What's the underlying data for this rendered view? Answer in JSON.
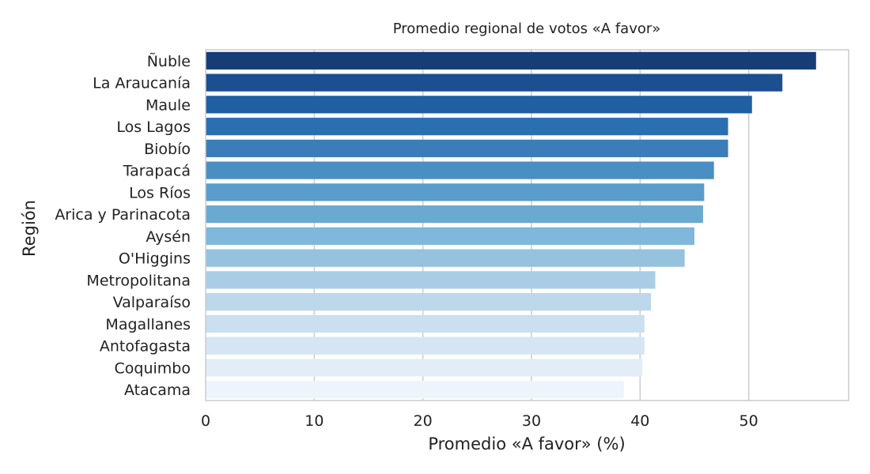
{
  "chart_data": {
    "type": "bar",
    "orientation": "horizontal",
    "title": "Promedio regional de votos «A favor»",
    "xlabel": "Promedio «A favor» (%)",
    "ylabel": "Región",
    "categories": [
      "Ñuble",
      "La Araucanía",
      "Maule",
      "Los Lagos",
      "Biobío",
      "Tarapacá",
      "Los Ríos",
      "Arica y Parinacota",
      "Aysén",
      "O'Higgins",
      "Metropolitana",
      "Valparaíso",
      "Magallanes",
      "Antofagasta",
      "Coquimbo",
      "Atacama"
    ],
    "values": [
      56.2,
      53.1,
      50.3,
      48.1,
      48.1,
      46.8,
      45.9,
      45.8,
      45.0,
      44.1,
      41.4,
      41.0,
      40.4,
      40.4,
      40.2,
      38.5
    ],
    "xlim": [
      0,
      59.2
    ],
    "xticks": [
      0,
      10,
      20,
      30,
      40,
      50
    ],
    "grid": true,
    "palette": "Blues_r",
    "colors": [
      "#163d76",
      "#1b4f8f",
      "#1f5fa3",
      "#2a6fb0",
      "#3a7db8",
      "#4a8fc2",
      "#5a9ccb",
      "#6aaad2",
      "#7fb8da",
      "#95c2dd",
      "#a9cde4",
      "#bdd7eb",
      "#cadff0",
      "#d5e5f3",
      "#e2edf8",
      "#eef4fc"
    ]
  }
}
